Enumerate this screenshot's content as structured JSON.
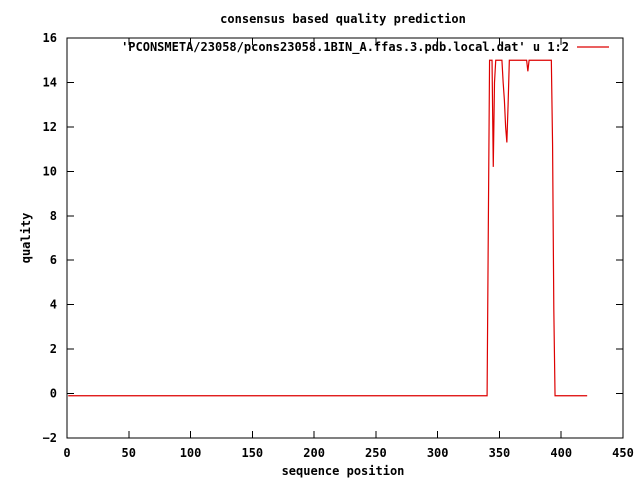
{
  "chart_data": {
    "type": "line",
    "title": "consensus based quality prediction",
    "xlabel": "sequence position",
    "ylabel": "quality",
    "xlim": [
      0,
      450
    ],
    "ylim": [
      -2,
      16
    ],
    "xticks": [
      0,
      50,
      100,
      150,
      200,
      250,
      300,
      350,
      400,
      450
    ],
    "yticks": [
      -2,
      0,
      2,
      4,
      6,
      8,
      10,
      12,
      14,
      16
    ],
    "legend_position": "top-right",
    "grid": false,
    "series": [
      {
        "name": "'PCONSMETA/23058/pcons23058.1BIN_A.ffas.3.pdb.local.dat' u 1:2",
        "color": "#dd0000",
        "points": [
          [
            1,
            -0.1
          ],
          [
            340,
            -0.1
          ],
          [
            341,
            7.5
          ],
          [
            342,
            15.0
          ],
          [
            344,
            15.0
          ],
          [
            345,
            10.2
          ],
          [
            346,
            14.0
          ],
          [
            347,
            15.0
          ],
          [
            352,
            15.0
          ],
          [
            353,
            14.0
          ],
          [
            354,
            13.2
          ],
          [
            355,
            12.0
          ],
          [
            356,
            11.3
          ],
          [
            357,
            13.0
          ],
          [
            358,
            15.0
          ],
          [
            372,
            15.0
          ],
          [
            373,
            14.5
          ],
          [
            374,
            15.0
          ],
          [
            392,
            15.0
          ],
          [
            393,
            11.2
          ],
          [
            394,
            3.8
          ],
          [
            395,
            -0.1
          ],
          [
            421,
            -0.1
          ]
        ]
      }
    ]
  }
}
